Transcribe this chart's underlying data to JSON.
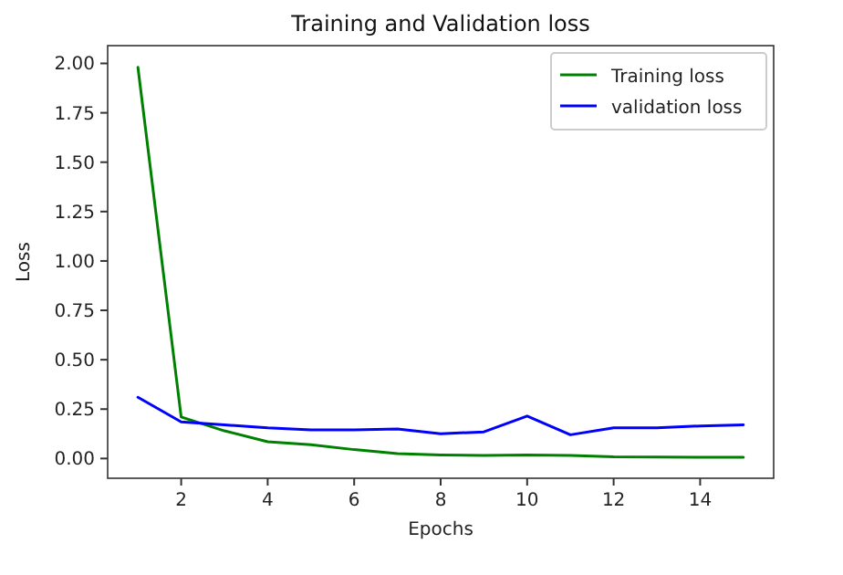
{
  "chart_data": {
    "type": "line",
    "title": "Training and Validation loss",
    "xlabel": "Epochs",
    "ylabel": "Loss",
    "x": [
      1,
      2,
      3,
      4,
      5,
      6,
      7,
      8,
      9,
      10,
      11,
      12,
      13,
      14,
      15
    ],
    "series": [
      {
        "name": "Training loss",
        "color": "#008000",
        "values": [
          1.98,
          0.21,
          0.14,
          0.085,
          0.07,
          0.045,
          0.025,
          0.018,
          0.015,
          0.018,
          0.015,
          0.008,
          0.007,
          0.006,
          0.006
        ]
      },
      {
        "name": "validation loss",
        "color": "#0000ff",
        "values": [
          0.31,
          0.185,
          0.17,
          0.155,
          0.145,
          0.145,
          0.15,
          0.125,
          0.135,
          0.215,
          0.12,
          0.155,
          0.155,
          0.165,
          0.17
        ]
      }
    ],
    "xlim": [
      0.3,
      15.7
    ],
    "xticks": [
      2,
      4,
      6,
      8,
      10,
      12,
      14
    ],
    "ylim": [
      -0.1,
      2.09
    ],
    "yticks": [
      {
        "value": 0,
        "label": "0.00"
      },
      {
        "value": 0.25,
        "label": "0.25"
      },
      {
        "value": 0.5,
        "label": "0.50"
      },
      {
        "value": 0.75,
        "label": "0.75"
      },
      {
        "value": 1,
        "label": "1.00"
      },
      {
        "value": 1.25,
        "label": "1.25"
      },
      {
        "value": 1.5,
        "label": "1.50"
      },
      {
        "value": 1.75,
        "label": "1.75"
      },
      {
        "value": 2,
        "label": "2.00"
      }
    ],
    "legend": "top right",
    "grid": false,
    "line_style": "solid",
    "marker": "none"
  }
}
